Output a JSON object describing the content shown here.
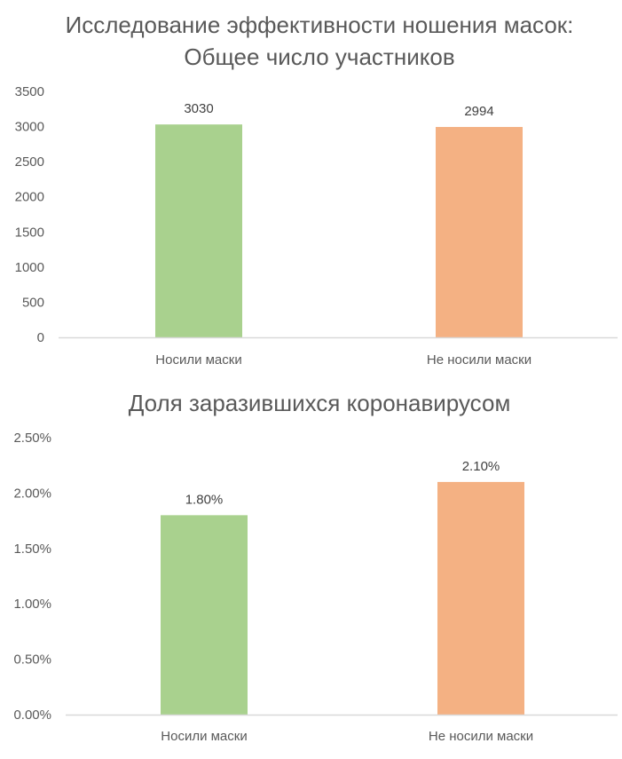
{
  "chart_data": [
    {
      "type": "bar",
      "title": "Исследование эффективности ношения масок:\nОбщее число участников",
      "title_lines": [
        "Исследование эффективности ношения масок:",
        "Общее число участников"
      ],
      "categories": [
        "Носили маски",
        "Не носили маски"
      ],
      "values": [
        3030,
        2994
      ],
      "value_labels": [
        "3030",
        "2994"
      ],
      "colors": [
        "#a9d18e",
        "#f4b183"
      ],
      "ylim": [
        0,
        3500
      ],
      "yticks": [
        0,
        500,
        1000,
        1500,
        2000,
        2500,
        3000,
        3500
      ],
      "ytick_labels": [
        "0",
        "500",
        "1000",
        "1500",
        "2000",
        "2500",
        "3000",
        "3500"
      ],
      "xlabel": "",
      "ylabel": "",
      "grid": false,
      "legend": false
    },
    {
      "type": "bar",
      "title": "Доля заразившихся коронавирусом",
      "title_lines": [
        "Доля заразившихся коронавирусом"
      ],
      "categories": [
        "Носили маски",
        "Не носили маски"
      ],
      "values": [
        1.8,
        2.1
      ],
      "value_labels": [
        "1.80%",
        "2.10%"
      ],
      "colors": [
        "#a9d18e",
        "#f4b183"
      ],
      "ylim": [
        0,
        2.5
      ],
      "yticks": [
        0,
        0.5,
        1.0,
        1.5,
        2.0,
        2.5
      ],
      "ytick_labels": [
        "0.00%",
        "0.50%",
        "1.00%",
        "1.50%",
        "2.00%",
        "2.50%"
      ],
      "xlabel": "",
      "ylabel": "",
      "grid": false,
      "legend": false
    }
  ]
}
